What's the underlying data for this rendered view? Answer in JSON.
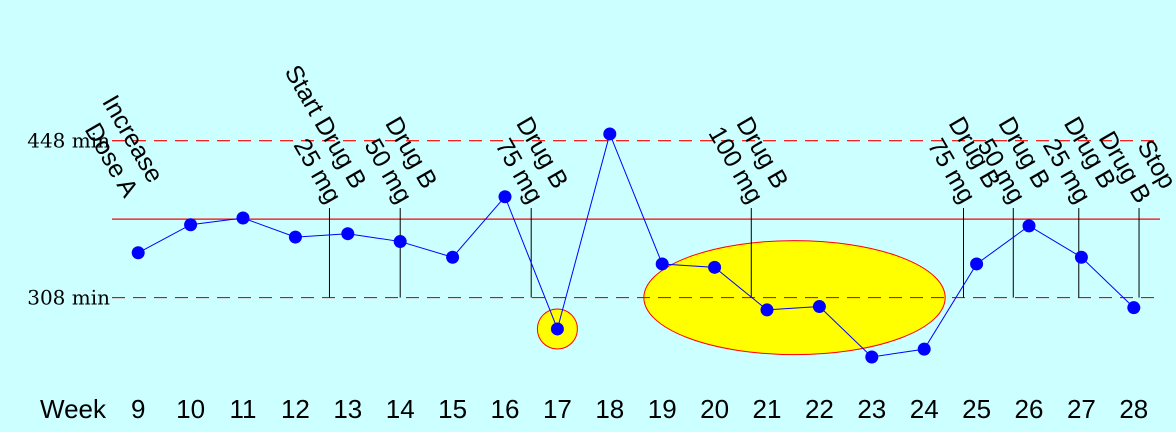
{
  "chart_data": {
    "type": "line",
    "x_label": "Week",
    "x": [
      9,
      10,
      11,
      12,
      13,
      14,
      15,
      16,
      17,
      18,
      19,
      20,
      21,
      22,
      23,
      24,
      25,
      26,
      27,
      28
    ],
    "y": [
      348,
      373,
      379,
      362,
      365,
      358,
      344,
      398,
      280,
      454,
      338,
      335,
      297,
      300,
      255,
      262,
      338,
      372,
      344,
      299
    ],
    "y_ticks": [
      {
        "value": 448,
        "label": "448 min"
      },
      {
        "value": 308,
        "label": "308 min"
      }
    ],
    "y_range": [
      230,
      520
    ],
    "x_range": [
      8.5,
      28.5
    ],
    "center_line": 378,
    "upper_limit": 448,
    "lower_limit": 308,
    "annotations": [
      {
        "x": 12.65,
        "lines": [
          "Start Drug B",
          "25 mg"
        ]
      },
      {
        "x": 14.0,
        "lines": [
          "Drug B",
          "50 mg"
        ]
      },
      {
        "x": 16.5,
        "lines": [
          "Drug B",
          "75 mg"
        ]
      },
      {
        "x": 20.7,
        "lines": [
          "Drug B",
          "100 mg"
        ]
      },
      {
        "x": 24.75,
        "lines": [
          "Drug B",
          "75 mg"
        ]
      },
      {
        "x": 25.7,
        "lines": [
          "Drug B",
          "50 mg"
        ]
      },
      {
        "x": 26.95,
        "lines": [
          "Drug B",
          "25 mg"
        ]
      },
      {
        "x": 28.1,
        "lines": [
          "Stop",
          "Drug B"
        ]
      }
    ],
    "left_annotation": {
      "x": 9,
      "lines": [
        "Increase",
        "Dose A"
      ]
    },
    "highlights": [
      {
        "type": "circle",
        "x": 17,
        "y": 280
      },
      {
        "type": "ellipse",
        "x_from": 18.65,
        "x_to": 24.4,
        "y_center": 308
      }
    ],
    "colors": {
      "background": "#ccffff",
      "series": "#0000ff",
      "control_lines": "#ff0000",
      "highlight_fill": "#ffff00",
      "highlight_stroke": "#ff0000"
    }
  }
}
